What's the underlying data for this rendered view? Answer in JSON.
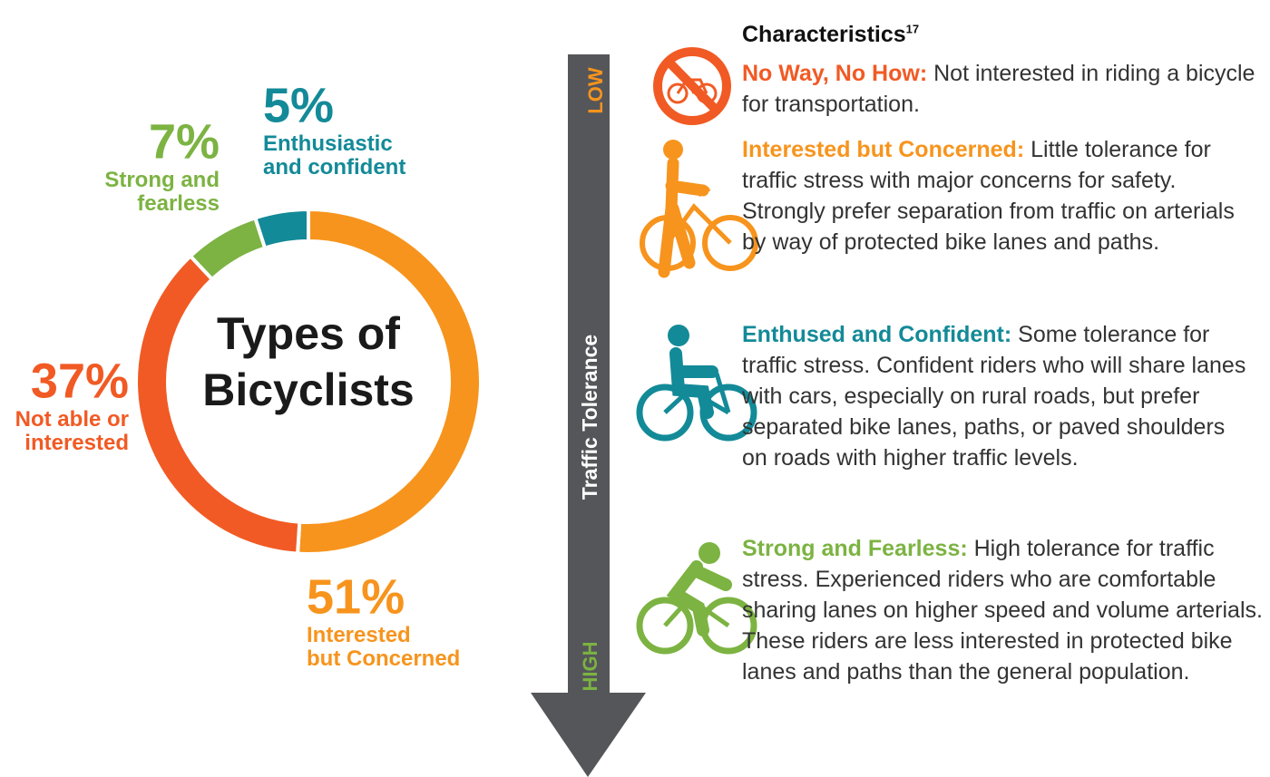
{
  "chart_data": {
    "type": "donut",
    "center_label": "Types of Bicyclists",
    "categories": [
      "Interested but Concerned",
      "Not able or interested",
      "Strong and fearless",
      "Enthusiastic and confident"
    ],
    "values": [
      51,
      37,
      7,
      5
    ],
    "value_labels": [
      "51%",
      "37%",
      "7%",
      "5%"
    ],
    "colors": [
      "#f7941d",
      "#f15a24",
      "#7cb342",
      "#138a98"
    ]
  },
  "arrow": {
    "label": "Traffic Tolerance",
    "low": "LOW",
    "high": "HIGH"
  },
  "characteristics": {
    "title": "Characteristics",
    "footnote": "17",
    "items": [
      {
        "title": "No Way, No How:",
        "text": "Not interested in riding a bicycle for transportation.",
        "color": "#f15a24"
      },
      {
        "title": "Interested but Concerned:",
        "text": "Little tolerance for traffic stress with major concerns for safety. Strongly prefer separation from traffic on arterials by way of protected bike lanes and paths.",
        "color": "#f7941d"
      },
      {
        "title": "Enthused and Confident:",
        "text": "Some tolerance for traffic stress. Confident riders who will share lanes with cars, especially on rural roads, but prefer separated bike lanes, paths, or paved shoulders on roads with higher traffic levels.",
        "color": "#138a98"
      },
      {
        "title": "Strong and Fearless:",
        "text": "High tolerance for traffic stress. Experienced riders who are comfortable sharing lanes on higher speed and volume arterials. These riders are less interested in protected bike lanes and paths than the general population.",
        "color": "#7cb342"
      }
    ]
  }
}
